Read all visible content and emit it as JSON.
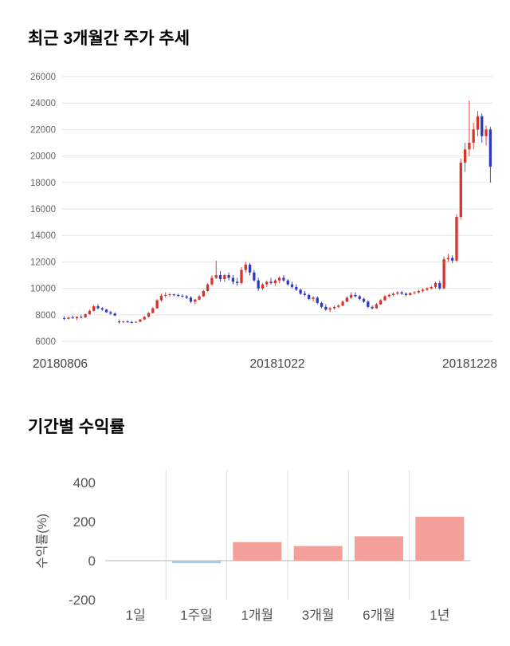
{
  "chart_data": [
    {
      "type": "candlestick",
      "title": "최근 3개월간 주가 추세",
      "ylim": [
        6000,
        26000
      ],
      "y_ticks": [
        6000,
        8000,
        10000,
        12000,
        14000,
        16000,
        18000,
        20000,
        22000,
        24000,
        26000
      ],
      "x_tick_labels": [
        "20180806",
        "20181022",
        "20181228"
      ],
      "up_color": "#d6332c",
      "down_color": "#3038bd",
      "grid_color": "#e5e5e5",
      "tick_label_color": "#666666",
      "date_label_color": "#444444",
      "candles_ohlc": [
        [
          7750,
          7900,
          7600,
          7700
        ],
        [
          7700,
          7850,
          7650,
          7800
        ],
        [
          7800,
          7950,
          7700,
          7750
        ],
        [
          7750,
          7900,
          7600,
          7850
        ],
        [
          7850,
          8000,
          7750,
          7800
        ],
        [
          7800,
          8100,
          7780,
          8050
        ],
        [
          8050,
          8400,
          8000,
          8300
        ],
        [
          8300,
          8750,
          8250,
          8650
        ],
        [
          8650,
          8800,
          8400,
          8500
        ],
        [
          8500,
          8600,
          8300,
          8400
        ],
        [
          8400,
          8450,
          8150,
          8200
        ],
        [
          8200,
          8300,
          8000,
          8100
        ],
        [
          8100,
          8200,
          7900,
          7950
        ],
        [
          7500,
          7600,
          7350,
          7450
        ],
        [
          7450,
          7550,
          7380,
          7500
        ],
        [
          7500,
          7600,
          7400,
          7450
        ],
        [
          7450,
          7550,
          7350,
          7420
        ],
        [
          7420,
          7500,
          7380,
          7480
        ],
        [
          7480,
          7700,
          7450,
          7650
        ],
        [
          7650,
          7900,
          7600,
          7850
        ],
        [
          7850,
          8200,
          7800,
          8150
        ],
        [
          8150,
          8600,
          8100,
          8500
        ],
        [
          8500,
          9200,
          8450,
          9100
        ],
        [
          9100,
          9600,
          9000,
          9450
        ],
        [
          9450,
          9700,
          9300,
          9500
        ],
        [
          9500,
          9650,
          9350,
          9550
        ],
        [
          9550,
          9600,
          9400,
          9500
        ],
        [
          9500,
          9600,
          9350,
          9450
        ],
        [
          9450,
          9550,
          9300,
          9400
        ],
        [
          9400,
          9500,
          9200,
          9300
        ],
        [
          9300,
          9400,
          8900,
          9000
        ],
        [
          9000,
          9200,
          8800,
          9150
        ],
        [
          9150,
          9500,
          9100,
          9400
        ],
        [
          9400,
          9900,
          9350,
          9800
        ],
        [
          9800,
          10400,
          9750,
          10300
        ],
        [
          10300,
          11000,
          10200,
          10800
        ],
        [
          10800,
          12100,
          10700,
          11000
        ],
        [
          11000,
          11300,
          10500,
          10700
        ],
        [
          10700,
          11100,
          10500,
          11000
        ],
        [
          11000,
          11200,
          10600,
          10800
        ],
        [
          10800,
          11000,
          10300,
          10500
        ],
        [
          10500,
          10800,
          10200,
          10400
        ],
        [
          10400,
          11600,
          10300,
          11400
        ],
        [
          11400,
          12000,
          11200,
          11800
        ],
        [
          11800,
          11900,
          11000,
          11200
        ],
        [
          11200,
          11400,
          10500,
          10600
        ],
        [
          10600,
          10800,
          9800,
          10000
        ],
        [
          10000,
          10400,
          9900,
          10300
        ],
        [
          10300,
          10600,
          10100,
          10500
        ],
        [
          10500,
          10800,
          10300,
          10400
        ],
        [
          10400,
          10700,
          10200,
          10600
        ],
        [
          10600,
          10900,
          10400,
          10800
        ],
        [
          10800,
          11000,
          10500,
          10600
        ],
        [
          10600,
          10700,
          10200,
          10300
        ],
        [
          10300,
          10500,
          10000,
          10100
        ],
        [
          10100,
          10300,
          9800,
          9900
        ],
        [
          9900,
          10000,
          9500,
          9600
        ],
        [
          9600,
          9800,
          9400,
          9500
        ],
        [
          9500,
          9600,
          9100,
          9200
        ],
        [
          9200,
          9400,
          9000,
          9300
        ],
        [
          9300,
          9400,
          8800,
          8900
        ],
        [
          8900,
          9000,
          8500,
          8600
        ],
        [
          8600,
          8800,
          8300,
          8400
        ],
        [
          8400,
          8600,
          8200,
          8500
        ],
        [
          8500,
          8700,
          8400,
          8600
        ],
        [
          8600,
          8800,
          8500,
          8700
        ],
        [
          8700,
          9100,
          8650,
          9000
        ],
        [
          9000,
          9400,
          8950,
          9300
        ],
        [
          9300,
          9700,
          9200,
          9500
        ],
        [
          9500,
          9700,
          9300,
          9400
        ],
        [
          9400,
          9500,
          9100,
          9200
        ],
        [
          9200,
          9300,
          8900,
          9000
        ],
        [
          9000,
          9100,
          8500,
          8600
        ],
        [
          8600,
          8700,
          8400,
          8500
        ],
        [
          8500,
          8900,
          8450,
          8800
        ],
        [
          8800,
          9200,
          8750,
          9100
        ],
        [
          9100,
          9500,
          9050,
          9400
        ],
        [
          9400,
          9600,
          9300,
          9500
        ],
        [
          9500,
          9700,
          9400,
          9600
        ],
        [
          9600,
          9800,
          9500,
          9700
        ],
        [
          9700,
          9800,
          9500,
          9600
        ],
        [
          9600,
          9700,
          9400,
          9500
        ],
        [
          9500,
          9700,
          9450,
          9650
        ],
        [
          9650,
          9800,
          9550,
          9700
        ],
        [
          9700,
          9900,
          9600,
          9800
        ],
        [
          9800,
          10000,
          9700,
          9900
        ],
        [
          9900,
          10100,
          9800,
          10000
        ],
        [
          10000,
          10200,
          9900,
          10100
        ],
        [
          10100,
          10500,
          10000,
          10400
        ],
        [
          10400,
          10600,
          9900,
          10000
        ],
        [
          10000,
          12400,
          9950,
          12200
        ],
        [
          12200,
          12600,
          12000,
          12300
        ],
        [
          12300,
          12500,
          11900,
          12100
        ],
        [
          12100,
          15600,
          12000,
          15400
        ],
        [
          15400,
          19800,
          15200,
          19500
        ],
        [
          19500,
          21000,
          18800,
          20500
        ],
        [
          20500,
          24200,
          20000,
          21000
        ],
        [
          21000,
          22500,
          20500,
          22000
        ],
        [
          22000,
          23400,
          21500,
          23000
        ],
        [
          23000,
          23200,
          21000,
          21500
        ],
        [
          21500,
          22300,
          20800,
          22000
        ],
        [
          22000,
          22200,
          18000,
          19200
        ]
      ]
    },
    {
      "type": "bar",
      "title": "기간별 수익률",
      "ylabel": "수익률(%)",
      "categories": [
        "1일",
        "1주일",
        "1개월",
        "3개월",
        "6개월",
        "1년"
      ],
      "values": [
        0,
        -13,
        95,
        75,
        125,
        225
      ],
      "ylim": [
        -200,
        400
      ],
      "y_ticks": [
        400,
        200,
        0,
        -200
      ],
      "positive_color": "#f4a09a",
      "negative_color": "#9ed0e6",
      "zero_line_color": "#b5b5b5",
      "grid_color": "#e0e0e0",
      "tick_label_color": "#555555"
    }
  ]
}
